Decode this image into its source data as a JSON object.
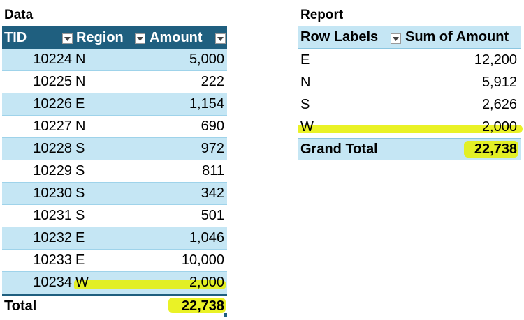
{
  "data_section": {
    "title": "Data",
    "headers": {
      "tid": "TID",
      "region": "Region",
      "amount": "Amount"
    },
    "rows": [
      {
        "tid": "10224",
        "region": "N",
        "amount": "5,000"
      },
      {
        "tid": "10225",
        "region": "N",
        "amount": "222"
      },
      {
        "tid": "10226",
        "region": "E",
        "amount": "1,154"
      },
      {
        "tid": "10227",
        "region": "N",
        "amount": "690"
      },
      {
        "tid": "10228",
        "region": "S",
        "amount": "972"
      },
      {
        "tid": "10229",
        "region": "S",
        "amount": "811"
      },
      {
        "tid": "10230",
        "region": "S",
        "amount": "342"
      },
      {
        "tid": "10231",
        "region": "S",
        "amount": "501"
      },
      {
        "tid": "10232",
        "region": "E",
        "amount": "1,046"
      },
      {
        "tid": "10233",
        "region": "E",
        "amount": "10,000"
      },
      {
        "tid": "10234",
        "region": "W",
        "amount": "2,000"
      }
    ],
    "total_label": "Total",
    "total_value": "22,738"
  },
  "report_section": {
    "title": "Report",
    "headers": {
      "row_labels": "Row Labels",
      "sum": "Sum of Amount"
    },
    "rows": [
      {
        "label": "E",
        "value": "12,200"
      },
      {
        "label": "N",
        "value": "5,912"
      },
      {
        "label": "S",
        "value": "2,626"
      },
      {
        "label": "W",
        "value": "2,000"
      }
    ],
    "grand_total_label": "Grand Total",
    "grand_total_value": "22,738"
  },
  "colors": {
    "header_fill": "#1f5f7f",
    "band_fill": "#c5e6f4",
    "highlight": "#e6f000"
  }
}
